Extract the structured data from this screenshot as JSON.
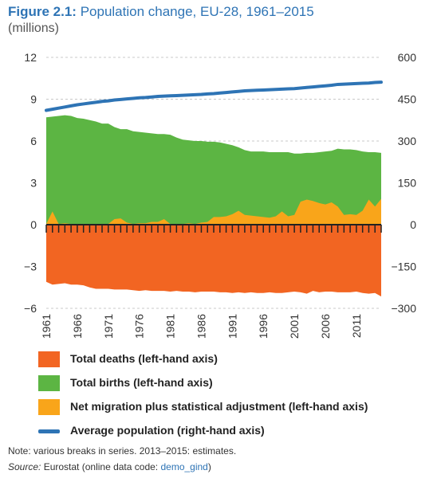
{
  "figure": {
    "label": "Figure 2.1:",
    "title": "Population change, EU-28, 1961–2015",
    "subtitle": "(millions)"
  },
  "note": "Note: various breaks in series. 2013–2015: estimates.",
  "source": {
    "label": "Source:",
    "text": "Eurostat (online data code: ",
    "code": "demo_gind",
    "suffix": ")"
  },
  "chart_data": {
    "type": "area",
    "x": [
      1961,
      1962,
      1963,
      1964,
      1965,
      1966,
      1967,
      1968,
      1969,
      1970,
      1971,
      1972,
      1973,
      1974,
      1975,
      1976,
      1977,
      1978,
      1979,
      1980,
      1981,
      1982,
      1983,
      1984,
      1985,
      1986,
      1987,
      1988,
      1989,
      1990,
      1991,
      1992,
      1993,
      1994,
      1995,
      1996,
      1997,
      1998,
      1999,
      2000,
      2001,
      2002,
      2003,
      2004,
      2005,
      2006,
      2007,
      2008,
      2009,
      2010,
      2011,
      2012,
      2013,
      2014,
      2015
    ],
    "x_tick_labels": [
      "1961",
      "1966",
      "1971",
      "1976",
      "1981",
      "1986",
      "1991",
      "1996",
      "2001",
      "2006",
      "2011"
    ],
    "left_axis": {
      "ylim": [
        -6,
        12
      ],
      "ticks": [
        "12",
        "9",
        "6",
        "3",
        "0",
        "−3",
        "−6"
      ],
      "tick_values": [
        12,
        9,
        6,
        3,
        0,
        -3,
        -6
      ]
    },
    "right_axis": {
      "ylim": [
        -300,
        600
      ],
      "ticks": [
        "600",
        "450",
        "300",
        "150",
        "0",
        "−150",
        "−300"
      ],
      "tick_values": [
        600,
        450,
        300,
        150,
        0,
        -150,
        -300
      ]
    },
    "grid": "dashed horizontal",
    "legend_position": "bottom",
    "series": [
      {
        "name": "Total deaths (left-hand axis)",
        "axis": "left",
        "color": "#f26522",
        "values": [
          -4.1,
          -4.3,
          -4.25,
          -4.2,
          -4.3,
          -4.3,
          -4.35,
          -4.5,
          -4.6,
          -4.6,
          -4.6,
          -4.65,
          -4.65,
          -4.65,
          -4.7,
          -4.75,
          -4.7,
          -4.75,
          -4.75,
          -4.75,
          -4.8,
          -4.75,
          -4.8,
          -4.8,
          -4.85,
          -4.8,
          -4.8,
          -4.8,
          -4.85,
          -4.85,
          -4.9,
          -4.85,
          -4.9,
          -4.85,
          -4.9,
          -4.9,
          -4.85,
          -4.9,
          -4.9,
          -4.85,
          -4.8,
          -4.85,
          -4.95,
          -4.75,
          -4.85,
          -4.8,
          -4.8,
          -4.85,
          -4.85,
          -4.85,
          -4.8,
          -4.9,
          -4.95,
          -4.9,
          -5.15
        ]
      },
      {
        "name": "Total births (left-hand axis)",
        "axis": "left",
        "color": "#5cb543",
        "values": [
          7.7,
          7.75,
          7.8,
          7.85,
          7.8,
          7.65,
          7.6,
          7.5,
          7.4,
          7.25,
          7.25,
          7.0,
          6.85,
          6.85,
          6.7,
          6.65,
          6.6,
          6.55,
          6.5,
          6.5,
          6.45,
          6.25,
          6.1,
          6.05,
          6.0,
          6.0,
          5.95,
          5.95,
          5.9,
          5.8,
          5.7,
          5.55,
          5.35,
          5.25,
          5.25,
          5.25,
          5.2,
          5.2,
          5.2,
          5.2,
          5.1,
          5.1,
          5.15,
          5.15,
          5.2,
          5.25,
          5.3,
          5.45,
          5.4,
          5.4,
          5.35,
          5.25,
          5.2,
          5.2,
          5.15
        ]
      },
      {
        "name": "Net migration plus statistical adjustment (left-hand axis)",
        "axis": "left",
        "color": "#f9a51a",
        "values": [
          0.05,
          0.95,
          0.05,
          0.1,
          0.05,
          0.05,
          0.05,
          0.05,
          0.05,
          0.05,
          0.05,
          0.4,
          0.45,
          0.15,
          0.05,
          0.1,
          0.1,
          0.2,
          0.2,
          0.4,
          0.05,
          0.05,
          0.05,
          0.1,
          0.05,
          0.15,
          0.2,
          0.55,
          0.55,
          0.6,
          0.75,
          1.0,
          0.7,
          0.65,
          0.6,
          0.55,
          0.5,
          0.6,
          0.95,
          0.6,
          0.7,
          1.65,
          1.8,
          1.7,
          1.55,
          1.45,
          1.6,
          1.3,
          0.7,
          0.75,
          0.7,
          1.0,
          1.8,
          1.3,
          1.85
        ]
      },
      {
        "name": "Average population (right-hand axis)",
        "axis": "right",
        "color": "#2e74b5",
        "values": [
          410,
          414,
          418,
          422,
          426,
          430,
          433,
          436,
          439,
          442,
          444,
          447,
          449,
          451,
          453,
          455,
          456,
          458,
          460,
          461,
          462,
          463,
          464,
          465,
          466,
          467,
          469,
          470,
          472,
          474,
          476,
          478,
          480,
          481,
          482,
          483,
          484,
          485,
          486,
          487,
          488,
          490,
          492,
          494,
          496,
          498,
          500,
          503,
          504,
          505,
          506,
          507,
          508,
          510,
          511
        ]
      }
    ]
  }
}
